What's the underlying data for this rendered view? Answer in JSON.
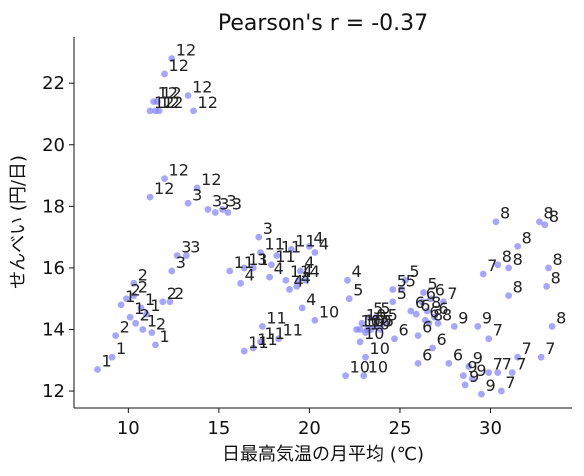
{
  "chart_data": {
    "type": "scatter",
    "title": "Pearson's r = -0.37",
    "xlabel": "日最高気温の月平均 (℃)",
    "ylabel": "せんべい (円/日)",
    "xlim": [
      7.0,
      34.5
    ],
    "ylim": [
      11.45,
      23.5
    ],
    "xticks": [
      10,
      15,
      20,
      25,
      30
    ],
    "yticks": [
      12,
      14,
      16,
      18,
      20,
      22
    ],
    "grid": false,
    "legend": "none",
    "point_color": "#8080ff",
    "points": [
      {
        "x": 8.3,
        "y": 12.7,
        "label": "1"
      },
      {
        "x": 9.1,
        "y": 13.1,
        "label": "1"
      },
      {
        "x": 9.3,
        "y": 13.8,
        "label": "2"
      },
      {
        "x": 9.6,
        "y": 14.8,
        "label": "1"
      },
      {
        "x": 9.9,
        "y": 15.0,
        "label": "2"
      },
      {
        "x": 10.1,
        "y": 14.4,
        "label": "1"
      },
      {
        "x": 10.3,
        "y": 15.1,
        "label": "2"
      },
      {
        "x": 10.3,
        "y": 15.5,
        "label": "2"
      },
      {
        "x": 10.4,
        "y": 14.2,
        "label": "2"
      },
      {
        "x": 10.7,
        "y": 14.7,
        "label": "1"
      },
      {
        "x": 10.8,
        "y": 14.0,
        "label": "1"
      },
      {
        "x": 11.0,
        "y": 14.5,
        "label": "1"
      },
      {
        "x": 11.3,
        "y": 13.9,
        "label": "2"
      },
      {
        "x": 11.5,
        "y": 13.5,
        "label": "1"
      },
      {
        "x": 11.9,
        "y": 14.9,
        "label": "2"
      },
      {
        "x": 12.3,
        "y": 14.9,
        "label": "2"
      },
      {
        "x": 12.4,
        "y": 15.9,
        "label": "3"
      },
      {
        "x": 12.7,
        "y": 16.4,
        "label": "3"
      },
      {
        "x": 13.2,
        "y": 16.4,
        "label": "3"
      },
      {
        "x": 11.2,
        "y": 21.1,
        "label": "12"
      },
      {
        "x": 11.4,
        "y": 21.4,
        "label": "12"
      },
      {
        "x": 11.5,
        "y": 21.1,
        "label": "12"
      },
      {
        "x": 11.6,
        "y": 21.4,
        "label": "12"
      },
      {
        "x": 11.7,
        "y": 21.1,
        "label": "12"
      },
      {
        "x": 12.0,
        "y": 22.3,
        "label": "12"
      },
      {
        "x": 12.4,
        "y": 22.8,
        "label": "12"
      },
      {
        "x": 13.3,
        "y": 21.6,
        "label": "12"
      },
      {
        "x": 13.6,
        "y": 21.1,
        "label": "12"
      },
      {
        "x": 11.2,
        "y": 18.3,
        "label": "12"
      },
      {
        "x": 12.0,
        "y": 18.9,
        "label": "12"
      },
      {
        "x": 13.3,
        "y": 18.1,
        "label": "3"
      },
      {
        "x": 13.8,
        "y": 18.6,
        "label": "12"
      },
      {
        "x": 14.4,
        "y": 17.9,
        "label": "3"
      },
      {
        "x": 14.8,
        "y": 17.8,
        "label": "3"
      },
      {
        "x": 15.2,
        "y": 17.9,
        "label": "3"
      },
      {
        "x": 15.5,
        "y": 17.8,
        "label": "3"
      },
      {
        "x": 15.6,
        "y": 15.9,
        "label": "11"
      },
      {
        "x": 16.4,
        "y": 16.0,
        "label": "11"
      },
      {
        "x": 16.2,
        "y": 15.5,
        "label": "4"
      },
      {
        "x": 16.9,
        "y": 16.0,
        "label": "3"
      },
      {
        "x": 17.2,
        "y": 17.0,
        "label": "3"
      },
      {
        "x": 17.3,
        "y": 16.5,
        "label": "11"
      },
      {
        "x": 17.8,
        "y": 15.7,
        "label": "4"
      },
      {
        "x": 17.9,
        "y": 16.1,
        "label": "11"
      },
      {
        "x": 18.2,
        "y": 16.4,
        "label": "11"
      },
      {
        "x": 18.7,
        "y": 15.6,
        "label": "11"
      },
      {
        "x": 18.9,
        "y": 15.3,
        "label": "4"
      },
      {
        "x": 19.0,
        "y": 16.6,
        "label": "11"
      },
      {
        "x": 19.3,
        "y": 15.4,
        "label": "4"
      },
      {
        "x": 19.4,
        "y": 15.6,
        "label": "4"
      },
      {
        "x": 19.5,
        "y": 15.9,
        "label": "4"
      },
      {
        "x": 19.6,
        "y": 14.7,
        "label": "4"
      },
      {
        "x": 19.8,
        "y": 15.6,
        "label": "4"
      },
      {
        "x": 20.0,
        "y": 16.7,
        "label": "4"
      },
      {
        "x": 20.3,
        "y": 16.5,
        "label": "4"
      },
      {
        "x": 16.4,
        "y": 13.3,
        "label": "11"
      },
      {
        "x": 16.9,
        "y": 13.4,
        "label": "11"
      },
      {
        "x": 17.3,
        "y": 13.6,
        "label": "11"
      },
      {
        "x": 17.4,
        "y": 14.1,
        "label": "11"
      },
      {
        "x": 18.3,
        "y": 13.7,
        "label": "11"
      },
      {
        "x": 20.3,
        "y": 14.3,
        "label": "10"
      },
      {
        "x": 22.0,
        "y": 12.5,
        "label": "10"
      },
      {
        "x": 22.1,
        "y": 15.6,
        "label": "4"
      },
      {
        "x": 22.2,
        "y": 15.0,
        "label": "5"
      },
      {
        "x": 22.6,
        "y": 14.0,
        "label": "10"
      },
      {
        "x": 22.8,
        "y": 13.6,
        "label": "10"
      },
      {
        "x": 22.8,
        "y": 14.0,
        "label": "10"
      },
      {
        "x": 22.9,
        "y": 14.2,
        "label": "10"
      },
      {
        "x": 23.0,
        "y": 12.5,
        "label": "10"
      },
      {
        "x": 23.1,
        "y": 13.1,
        "label": "10"
      },
      {
        "x": 23.1,
        "y": 13.9,
        "label": "10"
      },
      {
        "x": 23.2,
        "y": 14.0,
        "label": "10"
      },
      {
        "x": 23.3,
        "y": 14.4,
        "label": "5"
      },
      {
        "x": 23.4,
        "y": 14.0,
        "label": "5"
      },
      {
        "x": 23.6,
        "y": 14.1,
        "label": "5"
      },
      {
        "x": 23.7,
        "y": 14.4,
        "label": "5"
      },
      {
        "x": 23.9,
        "y": 14.0,
        "label": "5"
      },
      {
        "x": 24.1,
        "y": 14.2,
        "label": "5"
      },
      {
        "x": 24.6,
        "y": 15.3,
        "label": "5"
      },
      {
        "x": 24.6,
        "y": 14.9,
        "label": "5"
      },
      {
        "x": 24.7,
        "y": 13.7,
        "label": "6"
      },
      {
        "x": 25.1,
        "y": 15.3,
        "label": "5"
      },
      {
        "x": 25.3,
        "y": 15.6,
        "label": "5"
      },
      {
        "x": 25.6,
        "y": 14.6,
        "label": "6"
      },
      {
        "x": 25.9,
        "y": 14.5,
        "label": "6"
      },
      {
        "x": 26.0,
        "y": 13.8,
        "label": "6"
      },
      {
        "x": 26.2,
        "y": 14.9,
        "label": "6"
      },
      {
        "x": 26.3,
        "y": 15.2,
        "label": "5"
      },
      {
        "x": 26.4,
        "y": 14.3,
        "label": "6"
      },
      {
        "x": 26.5,
        "y": 14.6,
        "label": "8"
      },
      {
        "x": 26.6,
        "y": 14.2,
        "label": "8"
      },
      {
        "x": 26.7,
        "y": 15.0,
        "label": "6"
      },
      {
        "x": 26.8,
        "y": 13.4,
        "label": "6"
      },
      {
        "x": 26.9,
        "y": 14.4,
        "label": "6"
      },
      {
        "x": 26.0,
        "y": 12.9,
        "label": "6"
      },
      {
        "x": 27.1,
        "y": 14.2,
        "label": "8"
      },
      {
        "x": 27.4,
        "y": 14.9,
        "label": "7"
      },
      {
        "x": 27.7,
        "y": 12.9,
        "label": "6"
      },
      {
        "x": 28.0,
        "y": 14.1,
        "label": "9"
      },
      {
        "x": 28.5,
        "y": 12.5,
        "label": "9"
      },
      {
        "x": 28.6,
        "y": 12.2,
        "label": "9"
      },
      {
        "x": 28.8,
        "y": 12.8,
        "label": "9"
      },
      {
        "x": 29.0,
        "y": 12.4,
        "label": "9"
      },
      {
        "x": 29.3,
        "y": 14.1,
        "label": "9"
      },
      {
        "x": 29.5,
        "y": 11.9,
        "label": "9"
      },
      {
        "x": 29.6,
        "y": 15.8,
        "label": "7"
      },
      {
        "x": 29.9,
        "y": 13.7,
        "label": "7"
      },
      {
        "x": 29.9,
        "y": 12.6,
        "label": "7"
      },
      {
        "x": 30.3,
        "y": 17.5,
        "label": "8"
      },
      {
        "x": 30.4,
        "y": 16.1,
        "label": "8"
      },
      {
        "x": 30.4,
        "y": 12.6,
        "label": "7"
      },
      {
        "x": 30.6,
        "y": 12.0,
        "label": "7"
      },
      {
        "x": 31.0,
        "y": 16.0,
        "label": "8"
      },
      {
        "x": 31.0,
        "y": 15.1,
        "label": "8"
      },
      {
        "x": 31.2,
        "y": 12.6,
        "label": "7"
      },
      {
        "x": 31.5,
        "y": 16.7,
        "label": "8"
      },
      {
        "x": 31.5,
        "y": 13.1,
        "label": "7"
      },
      {
        "x": 32.7,
        "y": 17.5,
        "label": "8"
      },
      {
        "x": 32.8,
        "y": 13.1,
        "label": "7"
      },
      {
        "x": 33.0,
        "y": 17.4,
        "label": "8"
      },
      {
        "x": 33.1,
        "y": 15.4,
        "label": "8"
      },
      {
        "x": 33.2,
        "y": 16.0,
        "label": "8"
      },
      {
        "x": 33.4,
        "y": 14.1,
        "label": "8"
      }
    ]
  }
}
